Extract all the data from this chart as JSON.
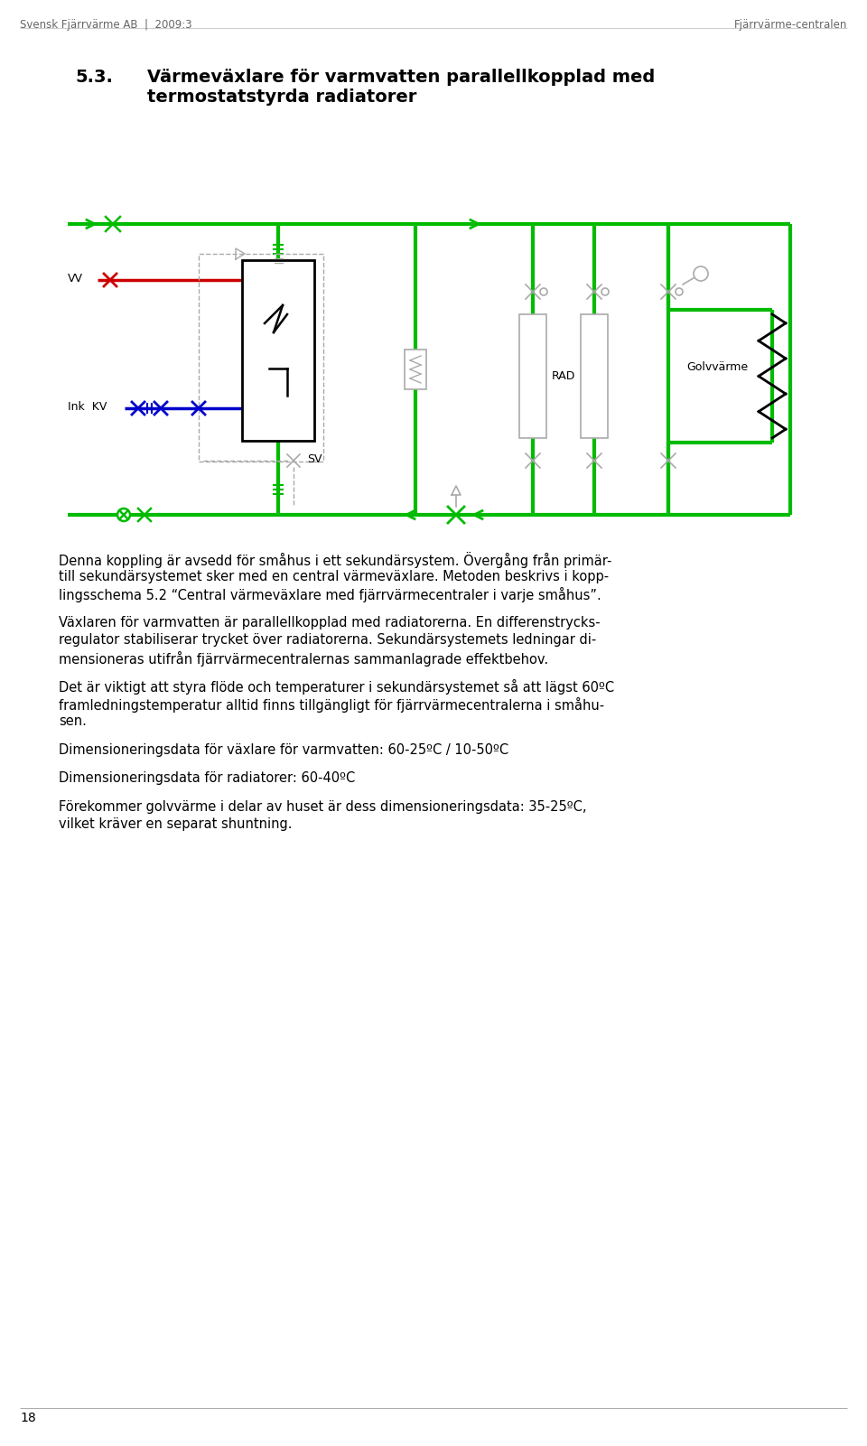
{
  "header_left": "Svensk Fjärrvärme AB  |  2009:3",
  "header_right": "Fjärrvärme­centralen",
  "footer_page": "18",
  "title_num": "5.3.",
  "title_text1": "Värmeväxlare för varmvatten parallellkopplad med",
  "title_text2": "termostatstyrda radiatorer",
  "para1_lines": [
    "Denna koppling är avsedd för småhus i ett sekundärsystem. Övergång från primär-",
    "till sekundärsystemet sker med en central värmeväxlare. Metoden beskrivs i kopp-",
    "lingsschema 5.2 “Central värmeväxlare med fjärrvärmecentraler i varje småhus”."
  ],
  "para2_lines": [
    "Växlaren för varmvatten är parallellkopplad med radiatorerna. En differenstrycks-",
    "regulator stabiliserar trycket över radiatorerna. Sekundärsystemets ledningar di-",
    "mensioneras utifrån fjärrvärmecentralernas sammanlagrade effektbehov."
  ],
  "para3_lines": [
    "Det är viktigt att styra flöde och temperaturer i sekundärsystemet så att lägst 60ºC",
    "framledningstemperatur alltid finns tillgängligt för fjärrvärmecentralerna i småhu-",
    "sen."
  ],
  "para4": "Dimensioneringsdata för växlare för varmvatten: 60-25ºC / 10-50ºC",
  "para5": "Dimensioneringsdata för radiatorer: 60-40ºC",
  "para6_lines": [
    "Förekommer golvvärme i delar av huset är dess dimensioneringsdata: 35-25ºC,",
    "vilket kräver en separat shuntning."
  ],
  "green_color": "#00bb00",
  "red_color": "#cc0000",
  "blue_color": "#0000cc",
  "black_color": "#000000",
  "gray_color": "#aaaaaa",
  "dark_gray": "#666666",
  "bg_color": "#ffffff"
}
